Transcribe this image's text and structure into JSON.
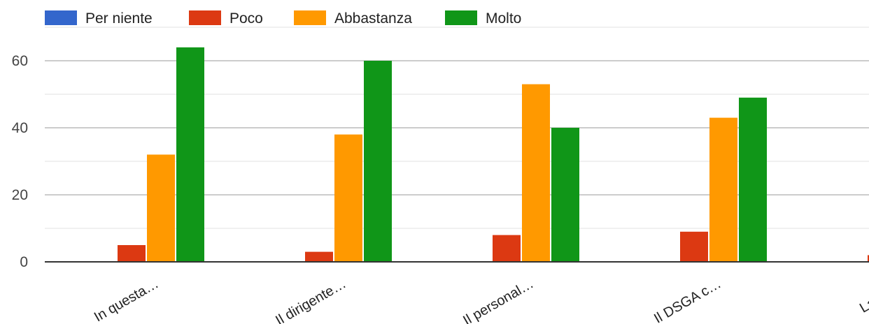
{
  "chart_data": {
    "type": "bar",
    "title": "",
    "xlabel": "",
    "ylabel": "",
    "categories": [
      "In questa…",
      "Il dirigente…",
      "Il personal…",
      "Il DSGA c…",
      "La dirige"
    ],
    "series": [
      {
        "name": "Per niente",
        "color": "#3366cc",
        "values": [
          0,
          0,
          0,
          0,
          0
        ]
      },
      {
        "name": "Poco",
        "color": "#dc3912",
        "values": [
          5,
          3,
          8,
          9,
          2
        ]
      },
      {
        "name": "Abbastanza",
        "color": "#ff9900",
        "values": [
          32,
          38,
          53,
          43,
          null
        ]
      },
      {
        "name": "Molto",
        "color": "#109618",
        "values": [
          64,
          60,
          40,
          49,
          null
        ]
      }
    ],
    "ylim": [
      0,
      70
    ],
    "yticks": [
      0,
      20,
      40,
      60
    ],
    "grid": true,
    "legend_position": "top-left"
  }
}
